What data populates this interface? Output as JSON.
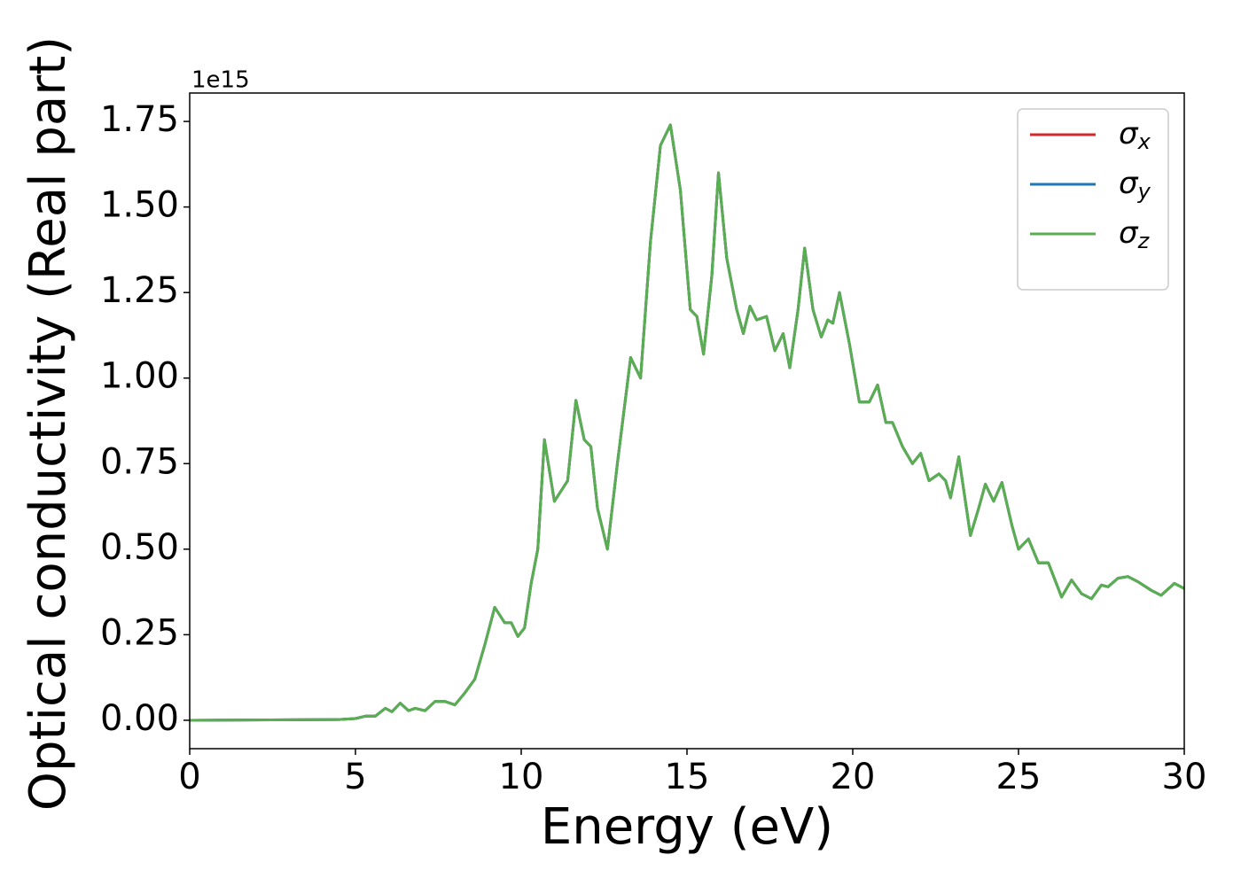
{
  "chart_data": {
    "type": "line",
    "xlabel": "Energy (eV)",
    "ylabel": "Optical conductivity (Real part)",
    "offset_label": "1e15",
    "xlim": [
      0,
      30
    ],
    "ylim": [
      -0.083,
      1.833
    ],
    "xticks": [
      0,
      5,
      10,
      15,
      20,
      25,
      30
    ],
    "yticks": [
      {
        "value": 0,
        "label": "0.00"
      },
      {
        "value": 0.25,
        "label": "0.25"
      },
      {
        "value": 0.5,
        "label": "0.50"
      },
      {
        "value": 0.75,
        "label": "0.75"
      },
      {
        "value": 1,
        "label": "1.00"
      },
      {
        "value": 1.25,
        "label": "1.25"
      },
      {
        "value": 1.5,
        "label": "1.50"
      },
      {
        "value": 1.75,
        "label": "1.75"
      }
    ],
    "grid": false,
    "legend": "upper right",
    "x": [
      0,
      4.5,
      5,
      5.3,
      5.6,
      5.9,
      6.1,
      6.35,
      6.6,
      6.8,
      7.1,
      7.4,
      7.7,
      8.0,
      8.3,
      8.6,
      8.9,
      9.2,
      9.5,
      9.7,
      9.9,
      10.1,
      10.3,
      10.5,
      10.7,
      11.0,
      11.2,
      11.4,
      11.65,
      11.9,
      12.1,
      12.3,
      12.6,
      12.9,
      13.3,
      13.6,
      13.9,
      14.2,
      14.5,
      14.8,
      15.1,
      15.3,
      15.5,
      15.75,
      15.95,
      16.2,
      16.5,
      16.7,
      16.9,
      17.1,
      17.4,
      17.65,
      17.9,
      18.1,
      18.35,
      18.55,
      18.8,
      19.05,
      19.25,
      19.4,
      19.6,
      19.9,
      20.2,
      20.5,
      20.75,
      21.0,
      21.2,
      21.5,
      21.8,
      22.05,
      22.3,
      22.6,
      22.8,
      22.95,
      23.2,
      23.55,
      23.8,
      24.0,
      24.25,
      24.5,
      24.8,
      25.0,
      25.3,
      25.6,
      25.9,
      26.3,
      26.6,
      26.9,
      27.2,
      27.5,
      27.7,
      28.0,
      28.3,
      28.6,
      29.0,
      29.3,
      29.7,
      30
    ],
    "series": [
      {
        "name": "σx",
        "color": "#d62728",
        "values": [
          0,
          0.002,
          0.005,
          0.012,
          0.012,
          0.035,
          0.025,
          0.05,
          0.028,
          0.035,
          0.028,
          0.055,
          0.055,
          0.045,
          0.08,
          0.12,
          0.22,
          0.33,
          0.285,
          0.285,
          0.245,
          0.27,
          0.4,
          0.5,
          0.82,
          0.64,
          0.67,
          0.7,
          0.935,
          0.82,
          0.8,
          0.62,
          0.5,
          0.75,
          1.06,
          1.0,
          1.4,
          1.68,
          1.74,
          1.55,
          1.2,
          1.18,
          1.07,
          1.3,
          1.6,
          1.35,
          1.2,
          1.13,
          1.21,
          1.17,
          1.18,
          1.08,
          1.13,
          1.03,
          1.2,
          1.38,
          1.2,
          1.12,
          1.17,
          1.16,
          1.25,
          1.1,
          0.93,
          0.93,
          0.98,
          0.87,
          0.87,
          0.8,
          0.75,
          0.78,
          0.7,
          0.72,
          0.7,
          0.65,
          0.77,
          0.54,
          0.62,
          0.69,
          0.64,
          0.695,
          0.57,
          0.5,
          0.53,
          0.46,
          0.46,
          0.36,
          0.41,
          0.37,
          0.355,
          0.395,
          0.39,
          0.415,
          0.42,
          0.405,
          0.38,
          0.365,
          0.4,
          0.385
        ]
      },
      {
        "name": "σy",
        "color": "#1f77b4",
        "values": [
          0,
          0.002,
          0.005,
          0.012,
          0.012,
          0.035,
          0.025,
          0.05,
          0.028,
          0.035,
          0.028,
          0.055,
          0.055,
          0.045,
          0.08,
          0.12,
          0.22,
          0.33,
          0.285,
          0.285,
          0.245,
          0.27,
          0.4,
          0.5,
          0.82,
          0.64,
          0.67,
          0.7,
          0.935,
          0.82,
          0.8,
          0.62,
          0.5,
          0.75,
          1.06,
          1.0,
          1.4,
          1.68,
          1.74,
          1.55,
          1.2,
          1.18,
          1.07,
          1.3,
          1.6,
          1.35,
          1.2,
          1.13,
          1.21,
          1.17,
          1.18,
          1.08,
          1.13,
          1.03,
          1.2,
          1.38,
          1.2,
          1.12,
          1.17,
          1.16,
          1.25,
          1.1,
          0.93,
          0.93,
          0.98,
          0.87,
          0.87,
          0.8,
          0.75,
          0.78,
          0.7,
          0.72,
          0.7,
          0.65,
          0.77,
          0.54,
          0.62,
          0.69,
          0.64,
          0.695,
          0.57,
          0.5,
          0.53,
          0.46,
          0.46,
          0.36,
          0.41,
          0.37,
          0.355,
          0.395,
          0.39,
          0.415,
          0.42,
          0.405,
          0.38,
          0.365,
          0.4,
          0.385
        ]
      },
      {
        "name": "σz",
        "color": "#5aae52",
        "values": [
          0,
          0.002,
          0.005,
          0.012,
          0.012,
          0.035,
          0.025,
          0.05,
          0.028,
          0.035,
          0.028,
          0.055,
          0.055,
          0.045,
          0.08,
          0.12,
          0.22,
          0.33,
          0.285,
          0.285,
          0.245,
          0.27,
          0.4,
          0.5,
          0.82,
          0.64,
          0.67,
          0.7,
          0.935,
          0.82,
          0.8,
          0.62,
          0.5,
          0.75,
          1.06,
          1.0,
          1.4,
          1.68,
          1.74,
          1.55,
          1.2,
          1.18,
          1.07,
          1.3,
          1.6,
          1.35,
          1.2,
          1.13,
          1.21,
          1.17,
          1.18,
          1.08,
          1.13,
          1.03,
          1.2,
          1.38,
          1.2,
          1.12,
          1.17,
          1.16,
          1.25,
          1.1,
          0.93,
          0.93,
          0.98,
          0.87,
          0.87,
          0.8,
          0.75,
          0.78,
          0.7,
          0.72,
          0.7,
          0.65,
          0.77,
          0.54,
          0.62,
          0.69,
          0.64,
          0.695,
          0.57,
          0.5,
          0.53,
          0.46,
          0.46,
          0.36,
          0.41,
          0.37,
          0.355,
          0.395,
          0.39,
          0.415,
          0.42,
          0.405,
          0.38,
          0.365,
          0.4,
          0.385
        ]
      }
    ]
  }
}
